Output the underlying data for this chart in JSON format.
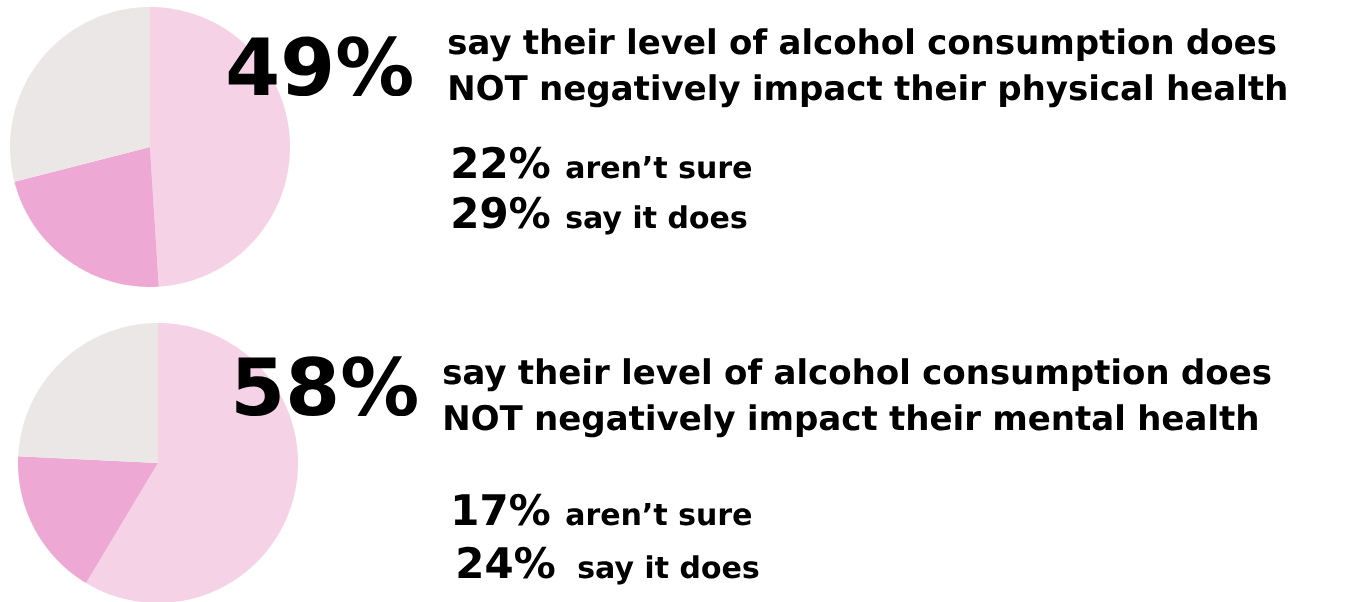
{
  "chart_data": [
    {
      "type": "pie",
      "categories": [
        null,
        null,
        null
      ],
      "values": [
        49,
        22,
        29
      ],
      "colors": [
        "#f6d2e6",
        "#eda9d4",
        "#ebe7e7"
      ],
      "annotations": [
        "49%",
        "say their level of alcohol consumption does NOT negatively impact their physical health",
        "22%",
        "aren’t sure",
        "29%",
        "say it does"
      ]
    },
    {
      "type": "pie",
      "categories": [
        null,
        null,
        null
      ],
      "values": [
        58,
        17,
        24
      ],
      "colors": [
        "#f6d2e6",
        "#eda9d4",
        "#ebe7e7"
      ],
      "annotations": [
        "58%",
        "say their level of alcohol consumption does NOT negatively impact their mental health",
        "17%",
        "aren’t sure",
        "24%",
        "say it does"
      ]
    }
  ]
}
